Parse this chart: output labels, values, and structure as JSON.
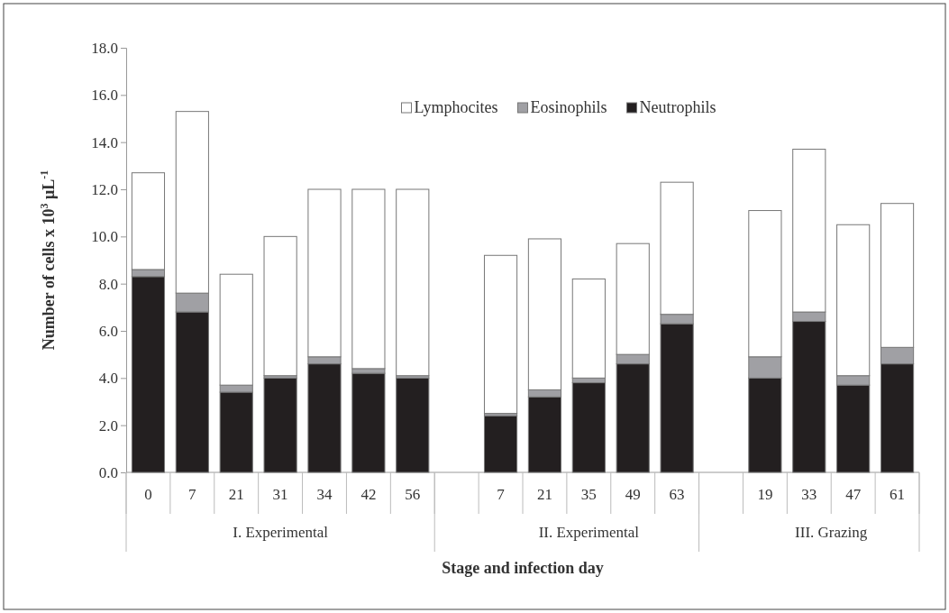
{
  "chart_data": {
    "type": "bar",
    "stacked": true,
    "xlabel": "Stage and infection day",
    "ylabel": "Number of cells x 10$^{3}$ μL$^{-1}$",
    "categories": [
      "0",
      "7",
      "21",
      "31",
      "34",
      "42",
      "56",
      null,
      "7",
      "21",
      "35",
      "49",
      "63",
      null,
      "19",
      "33",
      "47",
      "61"
    ],
    "annotations": [
      "I. Experimental",
      "II. Experimental",
      "III. Grazing"
    ],
    "series": [
      {
        "name": "Neutrophils",
        "color": "#231f20",
        "values": [
          8.3,
          6.8,
          3.4,
          4.0,
          4.6,
          4.2,
          4.0,
          null,
          2.4,
          3.2,
          3.8,
          4.6,
          6.3,
          null,
          4.0,
          6.4,
          3.7,
          4.6
        ]
      },
      {
        "name": "Eosinophils",
        "color": "#a0a0a4",
        "values": [
          0.3,
          0.8,
          0.3,
          0.1,
          0.3,
          0.2,
          0.1,
          null,
          0.1,
          0.3,
          0.2,
          0.4,
          0.4,
          null,
          0.9,
          0.4,
          0.4,
          0.7
        ]
      },
      {
        "name": "Lymphocites",
        "color": "#ffffff",
        "values": [
          4.1,
          7.7,
          4.7,
          5.9,
          7.1,
          7.6,
          7.9,
          null,
          6.7,
          6.4,
          4.2,
          4.7,
          5.6,
          null,
          6.2,
          6.9,
          6.4,
          6.1
        ]
      }
    ],
    "ylim": [
      0,
      18
    ],
    "yticks": [
      {
        "value": 0,
        "label": "0.0"
      },
      {
        "value": 2,
        "label": "2.0"
      },
      {
        "value": 4,
        "label": "4.0"
      },
      {
        "value": 6,
        "label": "6.0"
      },
      {
        "value": 8,
        "label": "8.0"
      },
      {
        "value": 10,
        "label": "10.0"
      },
      {
        "value": 12,
        "label": "12.0"
      },
      {
        "value": 14,
        "label": "14.0"
      },
      {
        "value": 16,
        "label": "16.0"
      },
      {
        "value": 18,
        "label": "18.0"
      }
    ],
    "legend": "top",
    "grid": false
  }
}
